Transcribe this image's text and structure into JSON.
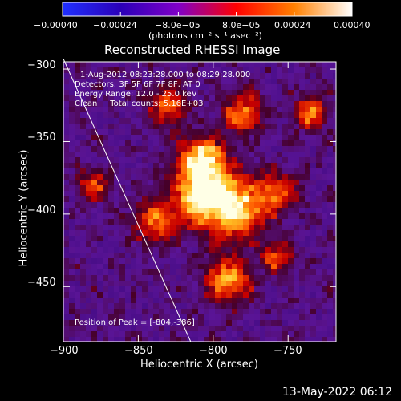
{
  "colorbar": {
    "ticks": [
      "−0.00040",
      "−0.00024",
      "−8.0e−05",
      "8.0e−05",
      "0.00024",
      "0.00040"
    ],
    "unit_label": "(photons cm⁻² s⁻¹ asec⁻²)",
    "range": [
      -0.0004,
      0.0004
    ],
    "colors": [
      "#2030ff",
      "#2a00b8",
      "#8000c8",
      "#ff0000",
      "#ff8000",
      "#ffffff"
    ]
  },
  "chart_data": {
    "type": "heatmap",
    "title": "Reconstructed RHESSI Image",
    "xlabel": "Heliocentric X (arcsec)",
    "ylabel": "Heliocentric Y (arcsec)",
    "xlim": [
      -900,
      -718
    ],
    "ylim": [
      -488,
      -295
    ],
    "x_ticks": [
      -900,
      -850,
      -800,
      -750
    ],
    "y_ticks": [
      -300,
      -350,
      -400,
      -450
    ],
    "x_tick_labels": [
      "−900",
      "−850",
      "−800",
      "−750"
    ],
    "y_tick_labels": [
      "−300",
      "−350",
      "−400",
      "−450"
    ],
    "limb_line": [
      [
        -900,
        -293
      ],
      [
        -815,
        -488
      ]
    ],
    "peak_position": [
      -804,
      -386
    ],
    "bright_sources": [
      {
        "x": -804,
        "y": -386,
        "intensity": 1.0,
        "sigma": 14
      },
      {
        "x": -808,
        "y": -362,
        "intensity": 0.75,
        "sigma": 10
      },
      {
        "x": -783,
        "y": -398,
        "intensity": 0.65,
        "sigma": 13
      },
      {
        "x": -790,
        "y": -445,
        "intensity": 0.7,
        "sigma": 10
      },
      {
        "x": -780,
        "y": -330,
        "intensity": 0.55,
        "sigma": 9
      },
      {
        "x": -735,
        "y": -330,
        "intensity": 0.6,
        "sigma": 7
      },
      {
        "x": -838,
        "y": -405,
        "intensity": 0.55,
        "sigma": 10
      },
      {
        "x": -880,
        "y": -380,
        "intensity": 0.45,
        "sigma": 7
      },
      {
        "x": -758,
        "y": -385,
        "intensity": 0.5,
        "sigma": 9
      },
      {
        "x": -757,
        "y": -430,
        "intensity": 0.45,
        "sigma": 7
      },
      {
        "x": -830,
        "y": -325,
        "intensity": 0.5,
        "sigma": 9
      }
    ],
    "info_lines": [
      "1-Aug-2012 08:23:28.000 to 08:29:28.000",
      "Detectors: 3F 5F 6F 7F 8F, AT 0",
      "Energy Range: 12.0 - 25.0 keV",
      "Clean     Total counts: 5.16E+03"
    ],
    "peak_label": "Position of Peak = [-804,-386]"
  },
  "footer": {
    "timestamp": "13-May-2022 06:12"
  }
}
